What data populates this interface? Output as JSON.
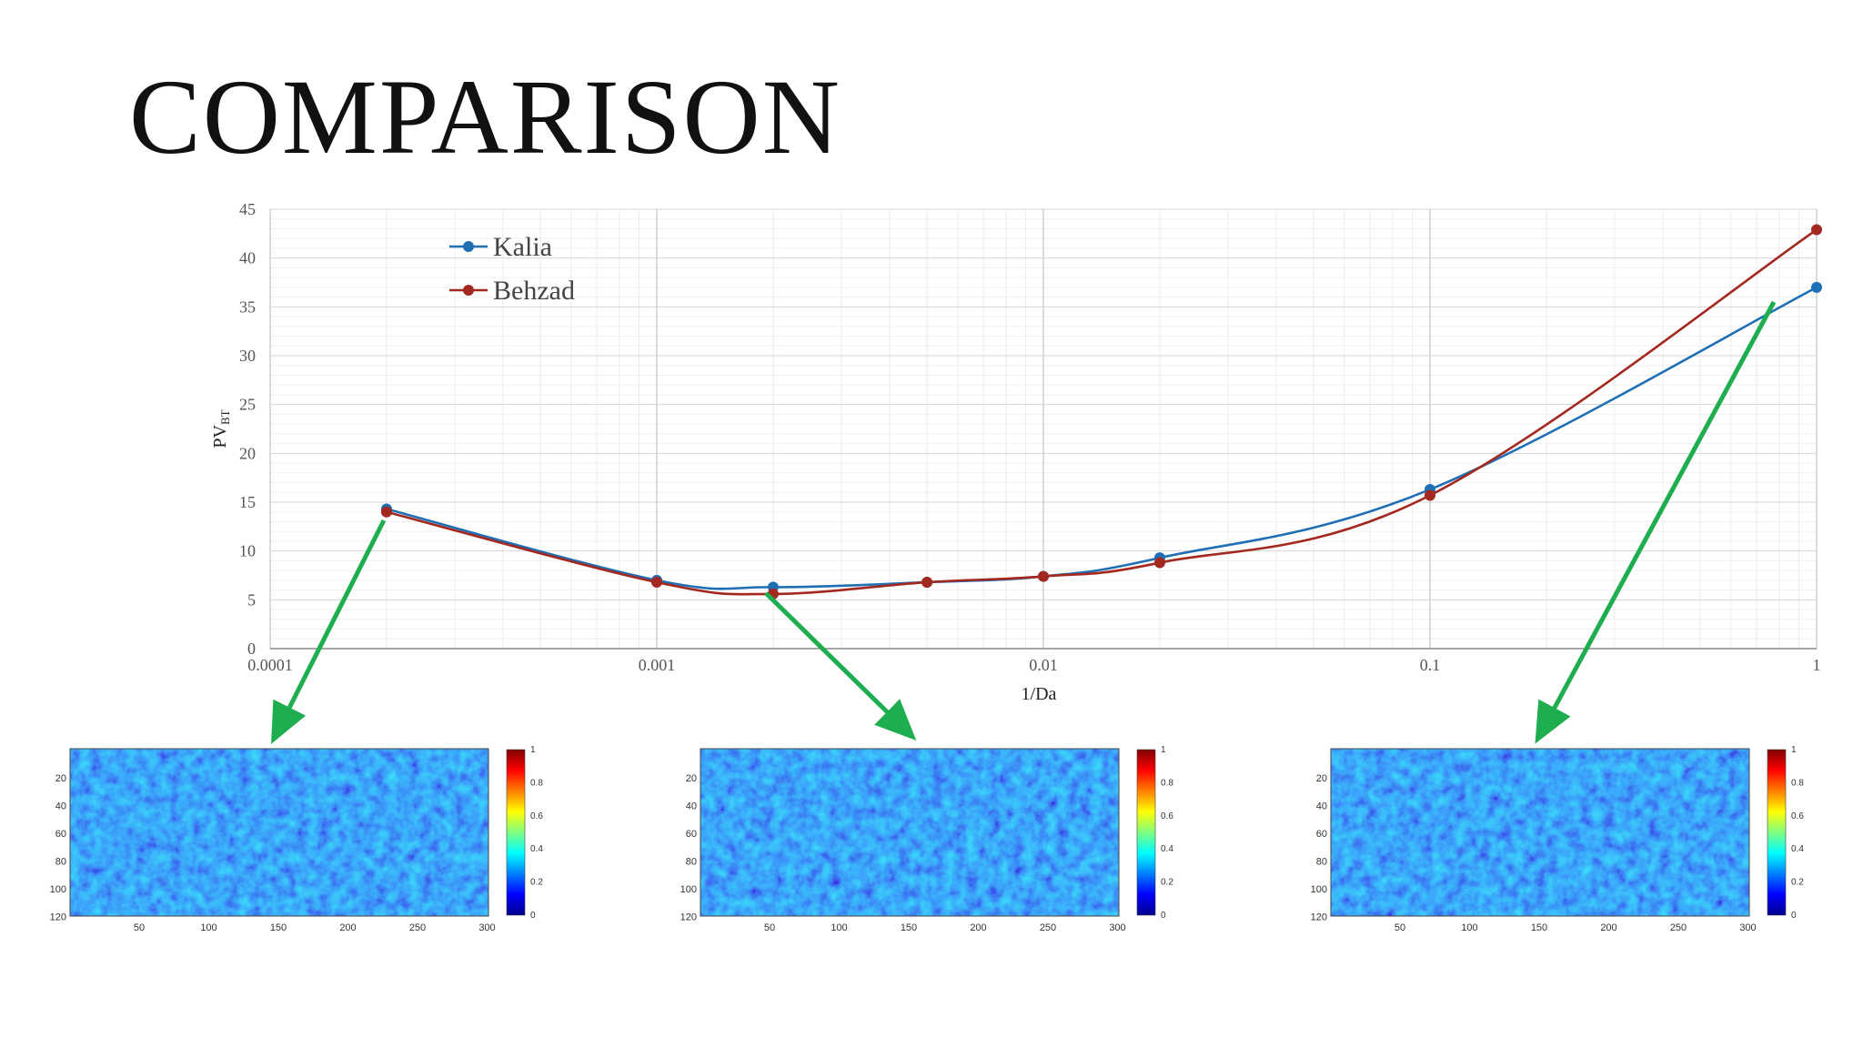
{
  "slide": {
    "title": "COMPARISON"
  },
  "chart_data": {
    "type": "line",
    "xscale": "log",
    "xlabel": "1/Da",
    "ylabel": "PV",
    "ylabel_sub": "BT",
    "xlim": [
      0.0001,
      1
    ],
    "ylim": [
      0,
      45
    ],
    "x_ticks": [
      "0.0001",
      "0.001",
      "0.01",
      "0.1",
      "1"
    ],
    "y_ticks": [
      "0",
      "5",
      "10",
      "15",
      "20",
      "25",
      "30",
      "35",
      "40",
      "45"
    ],
    "grid": true,
    "legend": "top-left",
    "series": [
      {
        "name": "Kalia",
        "color": "#1f6fb4",
        "x": [
          0.0002,
          0.001,
          0.002,
          0.005,
          0.01,
          0.02,
          0.1,
          1
        ],
        "y": [
          14.3,
          7.0,
          6.3,
          6.8,
          7.4,
          9.3,
          16.3,
          37.0
        ]
      },
      {
        "name": "Behzad",
        "color": "#a3281f",
        "x": [
          0.0002,
          0.001,
          0.002,
          0.005,
          0.01,
          0.02,
          0.1,
          1
        ],
        "y": [
          14.0,
          6.8,
          5.6,
          6.8,
          7.4,
          8.8,
          15.7,
          42.9
        ]
      }
    ]
  },
  "maps": {
    "y_ticks": [
      "20",
      "40",
      "60",
      "80",
      "100",
      "120"
    ],
    "x_ticks": [
      "50",
      "100",
      "150",
      "200",
      "250",
      "300"
    ],
    "colorbar_ticks": [
      "0",
      "0.2",
      "0.4",
      "0.6",
      "0.8",
      "1"
    ],
    "arrow_color": "#1fae4f"
  }
}
